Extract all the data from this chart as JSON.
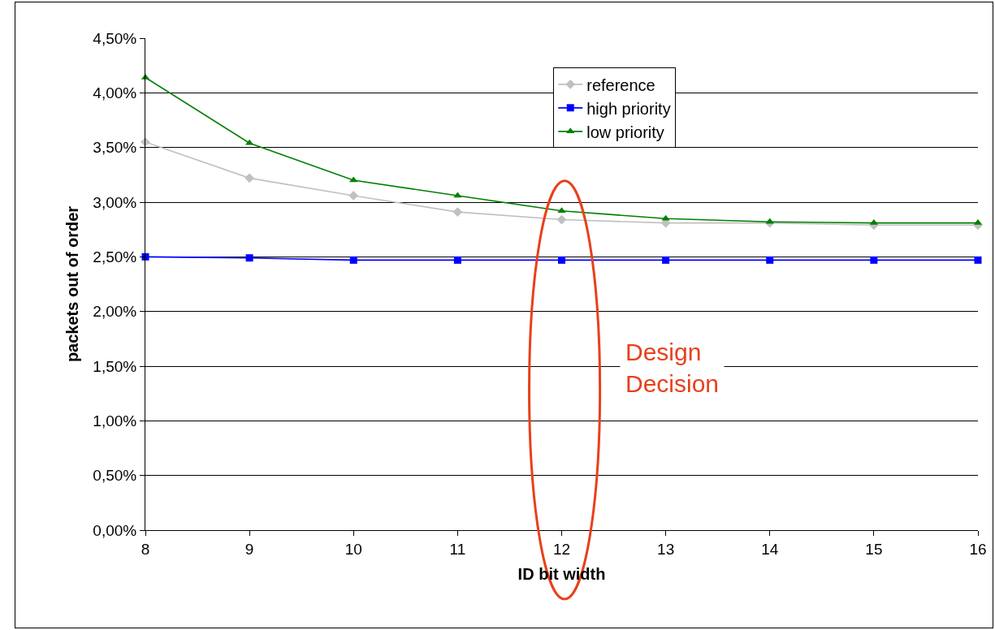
{
  "chart_data": {
    "type": "line",
    "xlabel": "ID bit width",
    "ylabel": "packets out of order",
    "x": [
      8,
      9,
      10,
      11,
      12,
      13,
      14,
      15,
      16
    ],
    "series": [
      {
        "name": "reference",
        "color": "#c0c0c0",
        "marker": "diamond",
        "values": [
          3.55,
          3.22,
          3.06,
          2.91,
          2.84,
          2.81,
          2.81,
          2.79,
          2.79
        ]
      },
      {
        "name": "high priority",
        "color": "#0000ff",
        "marker": "square",
        "values": [
          2.5,
          2.49,
          2.47,
          2.47,
          2.47,
          2.47,
          2.47,
          2.47,
          2.47
        ]
      },
      {
        "name": "low priority",
        "color": "#008000",
        "marker": "triangle",
        "values": [
          4.14,
          3.54,
          3.2,
          3.06,
          2.92,
          2.85,
          2.82,
          2.81,
          2.81
        ]
      }
    ],
    "xlim": [
      8,
      16
    ],
    "xticks": [
      8,
      9,
      10,
      11,
      12,
      13,
      14,
      15,
      16
    ],
    "ylim": [
      0,
      4.5
    ],
    "yticks": [
      {
        "value": 0,
        "label": "0,00%"
      },
      {
        "value": 0.5,
        "label": "0,50%"
      },
      {
        "value": 1,
        "label": "1,00%"
      },
      {
        "value": 1.5,
        "label": "1,50%"
      },
      {
        "value": 2,
        "label": "2,00%"
      },
      {
        "value": 2.5,
        "label": "2,50%"
      },
      {
        "value": 3,
        "label": "3,00%"
      },
      {
        "value": 3.5,
        "label": "3,50%"
      },
      {
        "value": 4,
        "label": "4,00%"
      },
      {
        "value": 4.5,
        "label": "4,50%"
      }
    ],
    "grid": "y",
    "legend": "top",
    "line_style": "solid",
    "annotations": [
      "Design\nDecision"
    ]
  }
}
